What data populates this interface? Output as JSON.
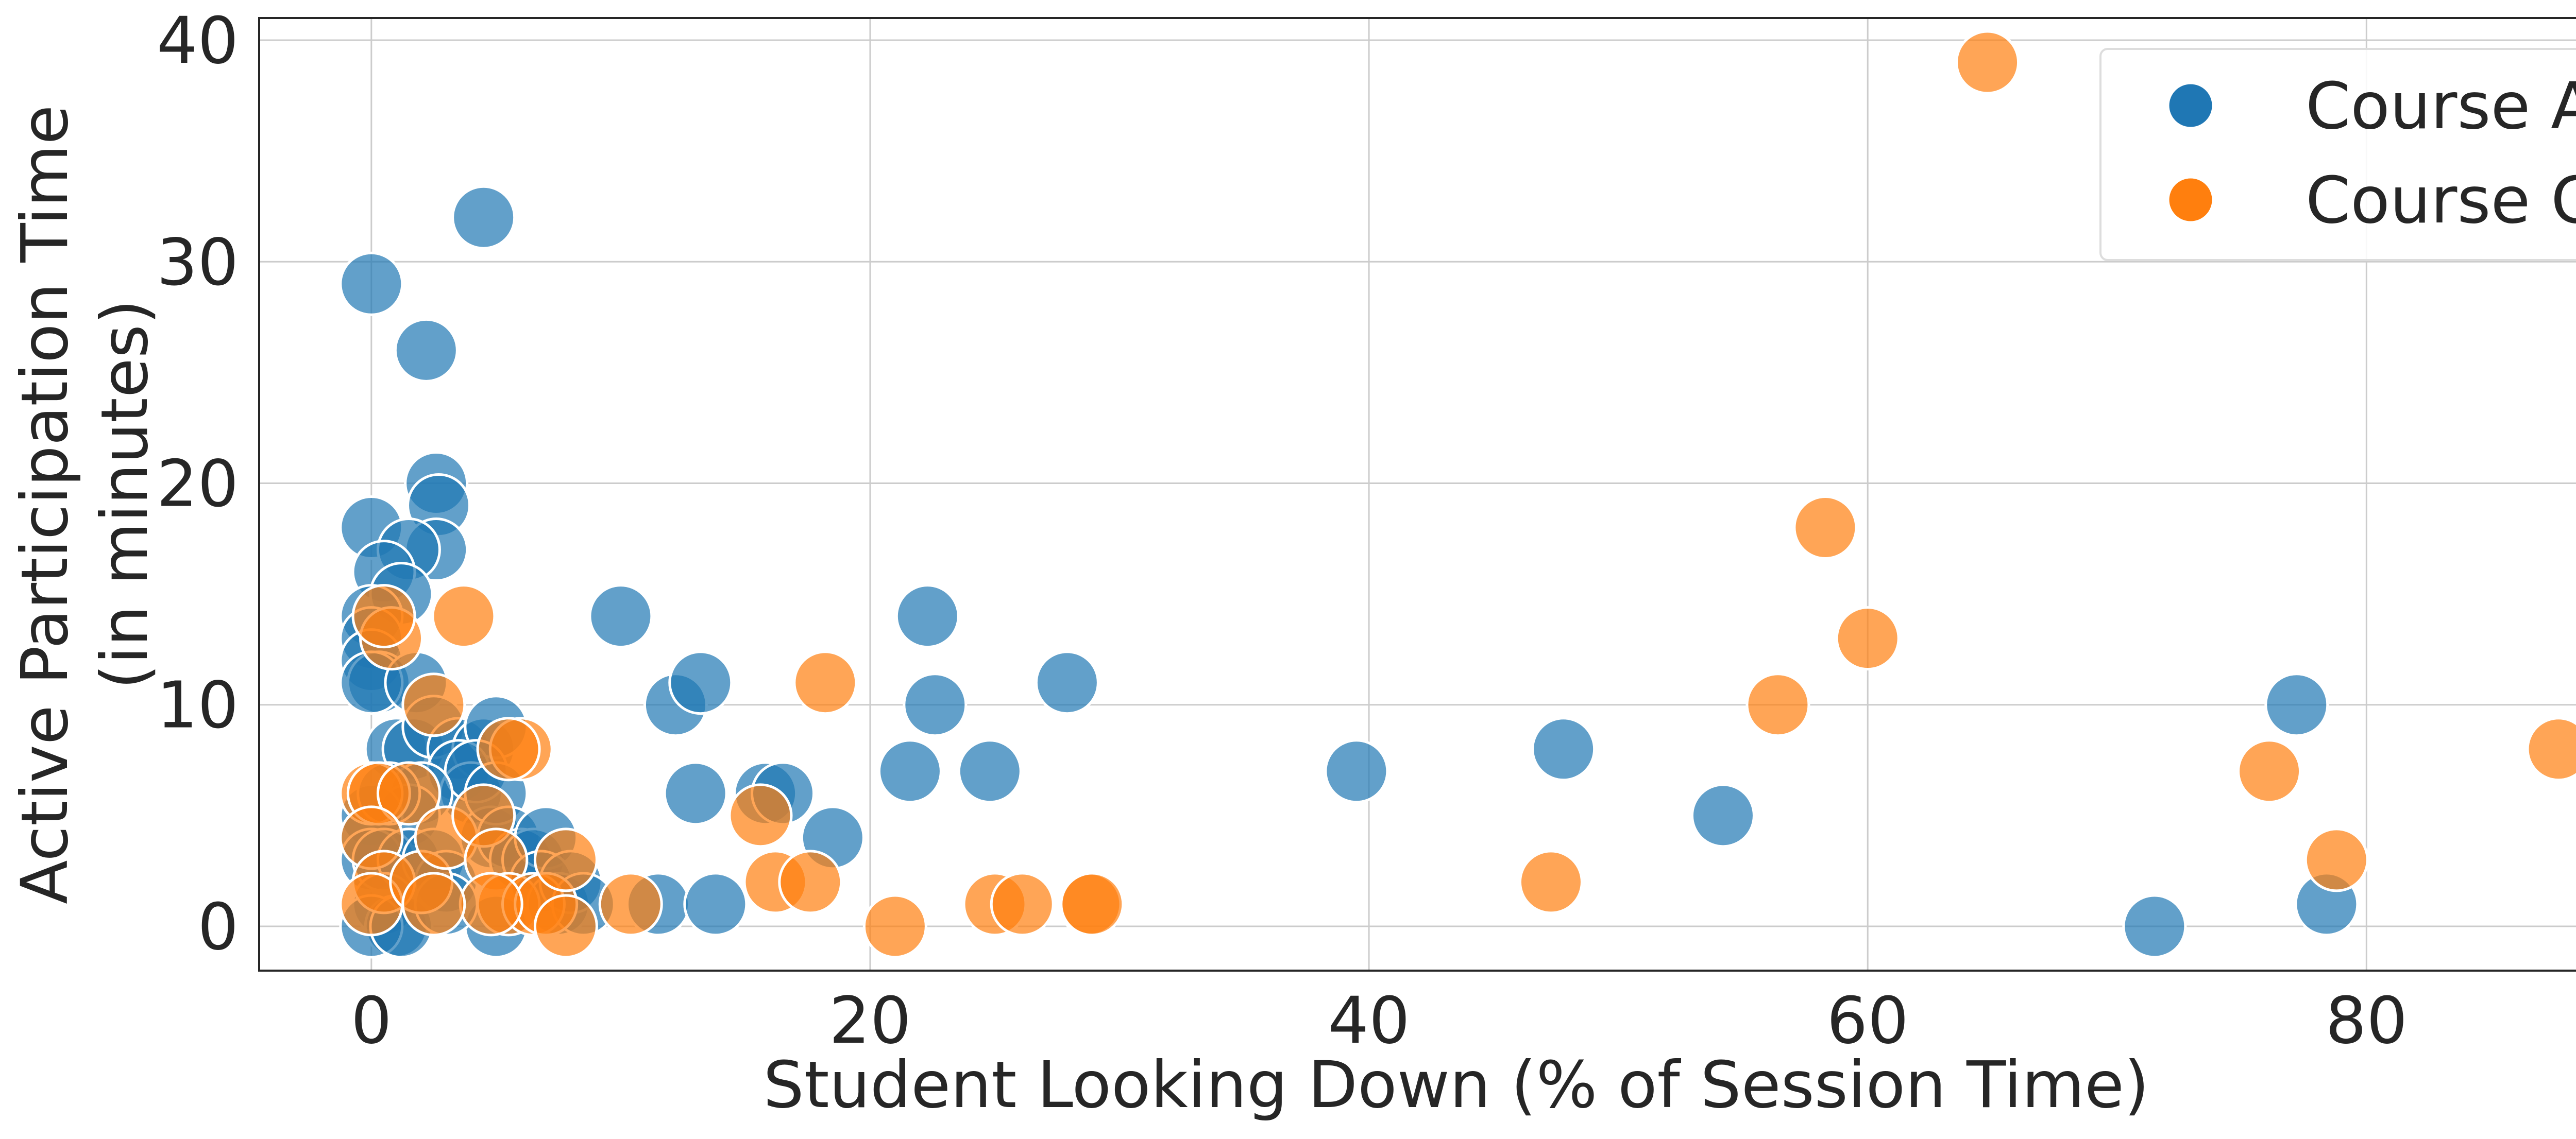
{
  "chart_data": {
    "type": "scatter",
    "title": "",
    "xlabel": "Student Looking Down (% of Session Time)",
    "ylabel_lines": [
      "Active Participation Time",
      "(in minutes)"
    ],
    "xlim": [
      -4.5,
      91.5
    ],
    "ylim": [
      -2,
      41
    ],
    "x_ticks": [
      0,
      20,
      40,
      60,
      80
    ],
    "y_ticks": [
      0,
      10,
      20,
      30,
      40
    ],
    "x_tick_labels": [
      "0",
      "20",
      "40",
      "60",
      "80"
    ],
    "y_tick_labels": [
      "0",
      "10",
      "20",
      "30",
      "40"
    ],
    "grid": true,
    "legend_position": "top-right",
    "series": [
      {
        "name": "Course A",
        "color": "#1f77b4",
        "points": [
          [
            0,
            29
          ],
          [
            4.5,
            32
          ],
          [
            2.2,
            26
          ],
          [
            2.6,
            20
          ],
          [
            2.7,
            19
          ],
          [
            2.6,
            17
          ],
          [
            0,
            18
          ],
          [
            1.5,
            17
          ],
          [
            0.5,
            16
          ],
          [
            1.2,
            15
          ],
          [
            0,
            14
          ],
          [
            0,
            13
          ],
          [
            0,
            12
          ],
          [
            0.3,
            11
          ],
          [
            0,
            11
          ],
          [
            1.8,
            11
          ],
          [
            1,
            8
          ],
          [
            1.7,
            8
          ],
          [
            2.5,
            9
          ],
          [
            3.5,
            8
          ],
          [
            4.5,
            8
          ],
          [
            5,
            9
          ],
          [
            3.5,
            7
          ],
          [
            4,
            6
          ],
          [
            4.2,
            7
          ],
          [
            2,
            6
          ],
          [
            1.5,
            5
          ],
          [
            0,
            5
          ],
          [
            0,
            4
          ],
          [
            0,
            3
          ],
          [
            0.5,
            3
          ],
          [
            1.5,
            3
          ],
          [
            2.5,
            3
          ],
          [
            3,
            2
          ],
          [
            4.8,
            4
          ],
          [
            5,
            6
          ],
          [
            5.5,
            4
          ],
          [
            6,
            3
          ],
          [
            6.5,
            3
          ],
          [
            7,
            4
          ],
          [
            6.8,
            2
          ],
          [
            7.5,
            1
          ],
          [
            8,
            2
          ],
          [
            8.5,
            1
          ],
          [
            0.5,
            1
          ],
          [
            1,
            0
          ],
          [
            0,
            0
          ],
          [
            1.2,
            0
          ],
          [
            5,
            0
          ],
          [
            3,
            1
          ],
          [
            2,
            2
          ],
          [
            0.7,
            6
          ],
          [
            10,
            14
          ],
          [
            12.2,
            10
          ],
          [
            13.2,
            11
          ],
          [
            11.5,
            1
          ],
          [
            13,
            6
          ],
          [
            13.8,
            1
          ],
          [
            15.8,
            6
          ],
          [
            16.5,
            6
          ],
          [
            18.5,
            4
          ],
          [
            22.3,
            14
          ],
          [
            22.6,
            10
          ],
          [
            21.6,
            7
          ],
          [
            24.8,
            7
          ],
          [
            27.9,
            11
          ],
          [
            39.5,
            7
          ],
          [
            47.8,
            8
          ],
          [
            54.2,
            5
          ],
          [
            71.5,
            0
          ],
          [
            77.2,
            10
          ],
          [
            78.4,
            1
          ]
        ]
      },
      {
        "name": "Course C",
        "color": "#ff7f0e",
        "points": [
          [
            64.8,
            39
          ],
          [
            58.3,
            18
          ],
          [
            60,
            13
          ],
          [
            56.4,
            10
          ],
          [
            76.1,
            7
          ],
          [
            78.8,
            3
          ],
          [
            87.7,
            8
          ],
          [
            47.3,
            2
          ],
          [
            3.7,
            14
          ],
          [
            0.8,
            13
          ],
          [
            0.5,
            14
          ],
          [
            2.5,
            10
          ],
          [
            6,
            8
          ],
          [
            5.5,
            8
          ],
          [
            0,
            6
          ],
          [
            0.3,
            6
          ],
          [
            1.5,
            6
          ],
          [
            0,
            4
          ],
          [
            0.5,
            2
          ],
          [
            0,
            1
          ],
          [
            2,
            2
          ],
          [
            3,
            4
          ],
          [
            4.5,
            5
          ],
          [
            5,
            3
          ],
          [
            5.5,
            1
          ],
          [
            6.5,
            1
          ],
          [
            7,
            1
          ],
          [
            7.8,
            3
          ],
          [
            7.8,
            0
          ],
          [
            4.8,
            1
          ],
          [
            2.5,
            1
          ],
          [
            10.4,
            1
          ],
          [
            15.6,
            5
          ],
          [
            16.2,
            2
          ],
          [
            17.6,
            2
          ],
          [
            18.2,
            11
          ],
          [
            21,
            0
          ],
          [
            25,
            1
          ],
          [
            26.1,
            1
          ],
          [
            28.8,
            1
          ],
          [
            28.9,
            1
          ]
        ]
      }
    ]
  }
}
